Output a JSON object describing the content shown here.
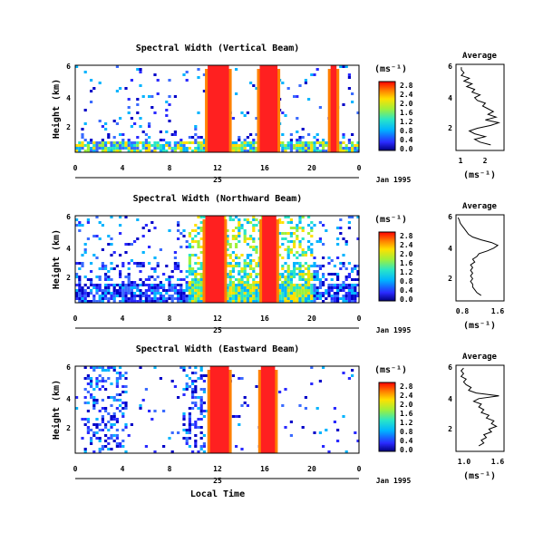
{
  "chart_data": {
    "type": "heatmap",
    "xlabel": "Local Time",
    "date_label": "Jan 1995",
    "day_label": "25",
    "colorbar_unit": "(ms⁻¹)",
    "profile_title": "Average",
    "profile_xlabel": "(ms⁻¹)",
    "panels": [
      {
        "title": "Spectral Width (Vertical Beam)",
        "ylabel": "Height (km)",
        "y_ticks": [
          "2",
          "4",
          "6"
        ],
        "x_ticks": [
          "0",
          "4",
          "8",
          "12",
          "16",
          "20",
          "0"
        ],
        "colorbar_ticks": [
          "0.0",
          "0.4",
          "0.8",
          "1.2",
          "1.6",
          "2.0",
          "2.4",
          "2.8"
        ],
        "profile_x_ticks": [
          "1",
          "2"
        ],
        "profile_xlim": [
          0.8,
          2.6
        ],
        "profile_y_ticks": [
          "2",
          "4",
          "6"
        ],
        "rain_blocks": [
          [
            11.2,
            13.0
          ],
          [
            15.6,
            17.1
          ],
          [
            21.6,
            22.1
          ]
        ],
        "profile": [
          [
            2.1,
            0.4
          ],
          [
            1.7,
            0.6
          ],
          [
            1.5,
            0.8
          ],
          [
            1.9,
            1.0
          ],
          [
            1.5,
            1.2
          ],
          [
            1.3,
            1.4
          ],
          [
            1.6,
            1.6
          ],
          [
            2.1,
            1.8
          ],
          [
            2.4,
            2.0
          ],
          [
            1.9,
            2.2
          ],
          [
            2.3,
            2.4
          ],
          [
            2.0,
            2.6
          ],
          [
            2.2,
            2.8
          ],
          [
            2.0,
            3.0
          ],
          [
            1.8,
            3.2
          ],
          [
            1.9,
            3.4
          ],
          [
            1.6,
            3.6
          ],
          [
            1.5,
            3.8
          ],
          [
            1.7,
            4.0
          ],
          [
            1.4,
            4.2
          ],
          [
            1.5,
            4.4
          ],
          [
            1.2,
            4.6
          ],
          [
            1.4,
            4.8
          ],
          [
            1.1,
            5.0
          ],
          [
            1.3,
            5.2
          ],
          [
            1.0,
            5.4
          ],
          [
            1.1,
            5.6
          ],
          [
            1.0,
            5.8
          ],
          [
            1.0,
            6.0
          ]
        ]
      },
      {
        "title": "Spectral Width (Northward Beam)",
        "ylabel": "Height (km)",
        "y_ticks": [
          "2",
          "4",
          "6"
        ],
        "x_ticks": [
          "0",
          "4",
          "8",
          "12",
          "16",
          "20",
          "0"
        ],
        "colorbar_ticks": [
          "0.0",
          "0.4",
          "0.8",
          "1.2",
          "1.6",
          "2.0",
          "2.4",
          "2.8"
        ],
        "profile_x_ticks": [
          "0.8",
          "1.6"
        ],
        "profile_xlim": [
          0.6,
          1.75
        ],
        "profile_y_ticks": [
          "2",
          "4",
          "6"
        ],
        "rain_blocks": [
          [
            11.0,
            12.6
          ],
          [
            15.8,
            17.0
          ]
        ],
        "profile": [
          [
            1.2,
            0.4
          ],
          [
            1.1,
            0.6
          ],
          [
            1.05,
            0.8
          ],
          [
            1.0,
            1.0
          ],
          [
            1.0,
            1.2
          ],
          [
            0.95,
            1.4
          ],
          [
            1.0,
            1.6
          ],
          [
            0.95,
            1.8
          ],
          [
            1.0,
            2.0
          ],
          [
            0.95,
            2.2
          ],
          [
            1.0,
            2.4
          ],
          [
            0.95,
            2.6
          ],
          [
            1.05,
            2.8
          ],
          [
            1.0,
            3.0
          ],
          [
            1.1,
            3.2
          ],
          [
            1.15,
            3.4
          ],
          [
            1.35,
            3.6
          ],
          [
            1.5,
            3.8
          ],
          [
            1.6,
            4.0
          ],
          [
            1.45,
            4.2
          ],
          [
            1.2,
            4.4
          ],
          [
            1.0,
            4.6
          ],
          [
            0.9,
            4.8
          ],
          [
            0.85,
            5.0
          ],
          [
            0.8,
            5.2
          ],
          [
            0.75,
            5.4
          ],
          [
            0.7,
            5.6
          ],
          [
            0.68,
            5.8
          ],
          [
            0.65,
            6.0
          ]
        ]
      },
      {
        "title": "Spectral Width (Eastward Beam)",
        "ylabel": "Height (km)",
        "y_ticks": [
          "2",
          "4",
          "6"
        ],
        "x_ticks": [
          "0",
          "4",
          "8",
          "12",
          "16",
          "20",
          "0"
        ],
        "colorbar_ticks": [
          "0.0",
          "0.4",
          "0.8",
          "1.2",
          "1.6",
          "2.0",
          "2.4",
          "2.8"
        ],
        "profile_x_ticks": [
          "1.0",
          "1.6"
        ],
        "profile_xlim": [
          0.85,
          1.8
        ],
        "profile_y_ticks": [
          "2",
          "4",
          "6"
        ],
        "rain_blocks": [
          [
            11.4,
            13.0
          ],
          [
            15.7,
            16.9
          ]
        ],
        "profile": [
          [
            1.3,
            0.4
          ],
          [
            1.4,
            0.6
          ],
          [
            1.35,
            0.8
          ],
          [
            1.45,
            1.0
          ],
          [
            1.4,
            1.2
          ],
          [
            1.55,
            1.4
          ],
          [
            1.5,
            1.6
          ],
          [
            1.65,
            1.8
          ],
          [
            1.55,
            2.0
          ],
          [
            1.6,
            2.2
          ],
          [
            1.45,
            2.4
          ],
          [
            1.5,
            2.6
          ],
          [
            1.35,
            2.8
          ],
          [
            1.4,
            3.0
          ],
          [
            1.3,
            3.2
          ],
          [
            1.35,
            3.4
          ],
          [
            1.2,
            3.6
          ],
          [
            1.3,
            3.8
          ],
          [
            1.7,
            4.0
          ],
          [
            1.25,
            4.2
          ],
          [
            1.1,
            4.4
          ],
          [
            1.15,
            4.6
          ],
          [
            1.05,
            4.8
          ],
          [
            1.0,
            5.0
          ],
          [
            1.05,
            5.2
          ],
          [
            0.95,
            5.4
          ],
          [
            1.0,
            5.6
          ],
          [
            0.95,
            5.8
          ],
          [
            1.0,
            6.0
          ]
        ]
      }
    ]
  }
}
